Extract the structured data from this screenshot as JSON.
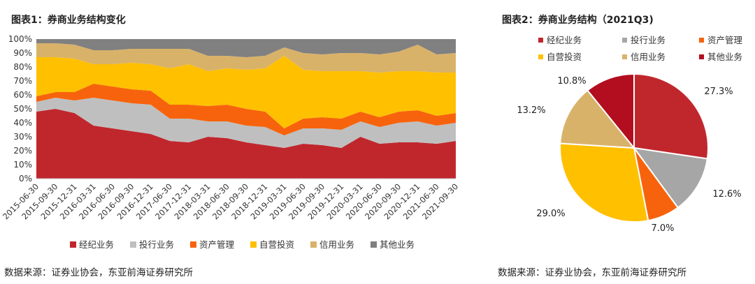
{
  "chart_data": [
    {
      "type": "area",
      "stacked": true,
      "title": "图表1：券商业务结构变化",
      "source": "数据来源：证券业协会，东亚前海证券研究所",
      "ylim": [
        0,
        100
      ],
      "yticks": [
        "0%",
        "10%",
        "20%",
        "30%",
        "40%",
        "50%",
        "60%",
        "70%",
        "80%",
        "90%",
        "100%"
      ],
      "x": [
        "2015-06-30",
        "2015-09-30",
        "2015-12-31",
        "2016-03-31",
        "2016-06-30",
        "2016-09-30",
        "2016-12-31",
        "2017-06-30",
        "2017-12-31",
        "2018-03-31",
        "2018-06-30",
        "2018-09-30",
        "2018-12-31",
        "2019-03-31",
        "2019-06-30",
        "2019-09-30",
        "2019-12-31",
        "2020-03-31",
        "2020-06-30",
        "2020-09-30",
        "2020-12-31",
        "2021-06-30",
        "2021-09-30"
      ],
      "legend_position": "bottom",
      "series": [
        {
          "name": "经纪业务",
          "color": "#C0272D",
          "values": [
            48,
            50,
            47,
            38,
            36,
            34,
            32,
            27,
            26,
            30,
            29,
            26,
            24,
            22,
            25,
            24,
            22,
            30,
            25,
            26,
            26,
            25,
            27
          ]
        },
        {
          "name": "投行业务",
          "color": "#BFBFBF",
          "values": [
            7,
            8,
            9,
            20,
            20,
            20,
            21,
            16,
            17,
            11,
            12,
            12,
            13,
            9,
            11,
            12,
            13,
            11,
            12,
            14,
            15,
            13,
            13
          ]
        },
        {
          "name": "资产管理",
          "color": "#F7630C",
          "values": [
            4,
            4,
            6,
            10,
            10,
            10,
            10,
            10,
            10,
            11,
            12,
            12,
            11,
            5,
            7,
            8,
            8,
            7,
            7,
            8,
            8,
            7,
            7
          ]
        },
        {
          "name": "自营投资",
          "color": "#FFC000",
          "values": [
            28,
            25,
            24,
            14,
            16,
            19,
            19,
            26,
            29,
            25,
            26,
            28,
            31,
            52,
            35,
            33,
            34,
            29,
            32,
            29,
            28,
            31,
            29
          ]
        },
        {
          "name": "信用业务",
          "color": "#D9B26A",
          "values": [
            10,
            10,
            10,
            10,
            10,
            10,
            11,
            14,
            11,
            11,
            9,
            9,
            9,
            6,
            12,
            12,
            13,
            13,
            13,
            14,
            19,
            13,
            14
          ]
        },
        {
          "name": "其他业务",
          "color": "#808080",
          "values": [
            3,
            3,
            4,
            8,
            8,
            7,
            7,
            7,
            7,
            12,
            12,
            13,
            12,
            6,
            10,
            11,
            10,
            10,
            11,
            9,
            4,
            11,
            10
          ]
        }
      ]
    },
    {
      "type": "pie",
      "title": "图表2：券商业务结构（2021Q3)",
      "source": "数据来源：证券业协会，东亚前海证券研究所",
      "legend_position": "top",
      "slices": [
        {
          "name": "经纪业务",
          "value": 27.3,
          "label": "27.3%",
          "color": "#C0272D"
        },
        {
          "name": "投行业务",
          "value": 12.6,
          "label": "12.6%",
          "color": "#A6A6A6"
        },
        {
          "name": "资产管理",
          "value": 7.0,
          "label": "7.0%",
          "color": "#F7630C"
        },
        {
          "name": "自营投资",
          "value": 29.0,
          "label": "29.0%",
          "color": "#FFC000"
        },
        {
          "name": "信用业务",
          "value": 13.2,
          "label": "13.2%",
          "color": "#D9B26A"
        },
        {
          "name": "其他业务",
          "value": 10.8,
          "label": "10.8%",
          "color": "#B20E20"
        }
      ]
    }
  ]
}
